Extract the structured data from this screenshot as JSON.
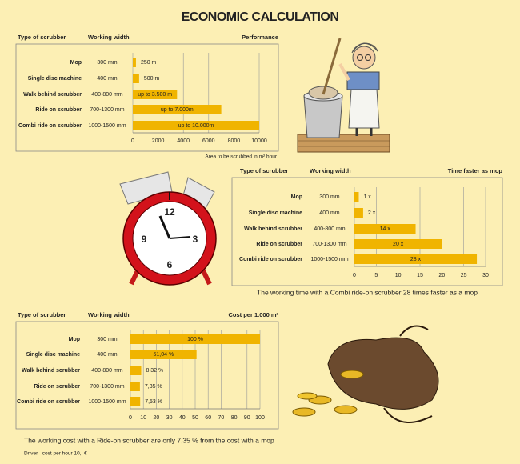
{
  "title": "ECONOMIC CALCULATION",
  "chart_data": [
    {
      "type": "bar",
      "orientation": "horizontal",
      "grid": true,
      "color": "#f0b400",
      "headers": [
        "Type of scrubber",
        "Working width",
        "Performance"
      ],
      "categories": [
        "Mop",
        "Single disc machine",
        "Walk behind scrubber",
        "Ride on scrubber",
        "Combi ride on scrubber"
      ],
      "widths": [
        "300 mm",
        "400 mm",
        "400-800 mm",
        "700-1300 mm",
        "1000-1500 mm"
      ],
      "values": [
        250,
        500,
        3500,
        7000,
        10000
      ],
      "value_labels": [
        "250 m",
        "500 m",
        "up to 3.500 m",
        "up to 7.000m",
        "up to 10.000m"
      ],
      "xlim": [
        0,
        10000
      ],
      "xticks": [
        0,
        2000,
        4000,
        6000,
        8000,
        10000
      ],
      "xlabel": "Area to be scrubbed in m² hour"
    },
    {
      "type": "bar",
      "orientation": "horizontal",
      "grid": true,
      "color": "#f0b400",
      "headers": [
        "Type of scrubber",
        "Working width",
        "Time faster as mop"
      ],
      "categories": [
        "Mop",
        "Single disc machine",
        "Walk behind scrubber",
        "Ride on scrubber",
        "Combi ride on scrubber"
      ],
      "widths": [
        "300 mm",
        "400 mm",
        "400-800 mm",
        "700-1300 mm",
        "1000-1500 mm"
      ],
      "values": [
        1,
        2,
        14,
        20,
        28
      ],
      "value_labels": [
        "1 x",
        "2 x",
        "14 x",
        "20 x",
        "28 x"
      ],
      "xlim": [
        0,
        30
      ],
      "xticks": [
        0,
        5,
        10,
        15,
        20,
        25,
        30
      ],
      "note": "The working time with a Combi ride-on scrubber 28 times faster as a mop"
    },
    {
      "type": "bar",
      "orientation": "horizontal",
      "grid": true,
      "color": "#f0b400",
      "headers": [
        "Type of scrubber",
        "Working width",
        "Cost per 1.000 m²"
      ],
      "categories": [
        "Mop",
        "Single disc machine",
        "Walk behind scrubber",
        "Ride on scrubber",
        "Combi ride on scrubber"
      ],
      "widths": [
        "300 mm",
        "400 mm",
        "400-800 mm",
        "700-1300 mm",
        "1000-1500 mm"
      ],
      "values": [
        100,
        51.04,
        8.32,
        7.35,
        7.53
      ],
      "value_labels": [
        "100 %",
        "51,04 %",
        "8,32 %",
        "7,35 %",
        "7,53 %"
      ],
      "xlim": [
        0,
        100
      ],
      "xticks": [
        0,
        10,
        20,
        30,
        40,
        50,
        60,
        70,
        80,
        90,
        100
      ],
      "note": "The working cost with a Ride-on scrubber are only 7,35 % from the cost with a mop",
      "footnote": "Driver   cost per hour 10,  €"
    }
  ]
}
